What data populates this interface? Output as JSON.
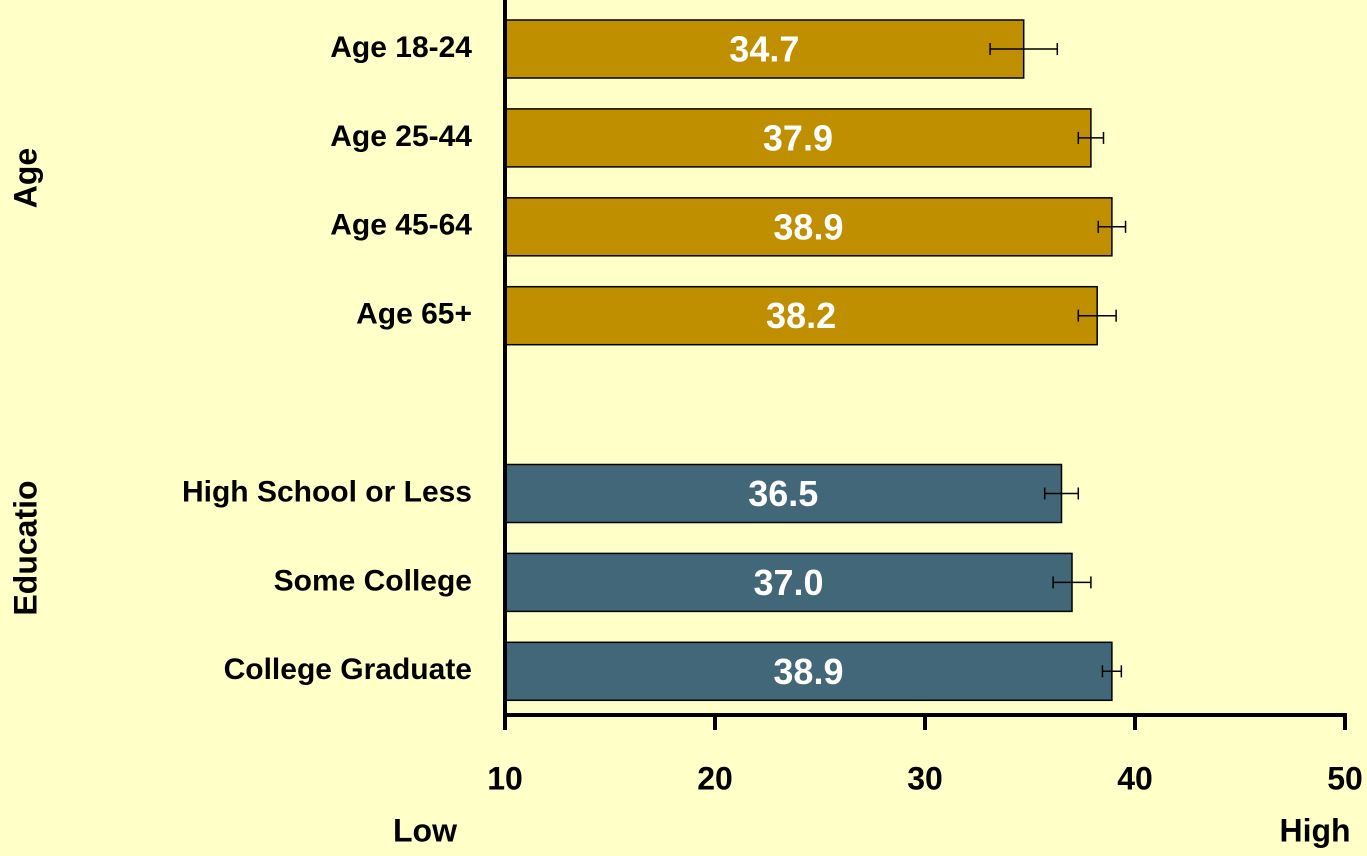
{
  "chart_data": {
    "type": "hbar",
    "categories": [
      "Age 18-24",
      "Age 25-44",
      "Age 45-64",
      "Age 65+",
      null,
      "High School or Less",
      "Some College",
      "College Graduate"
    ],
    "values": [
      34.7,
      37.9,
      38.9,
      38.2,
      null,
      36.5,
      37.0,
      38.9
    ],
    "value_labels": [
      "34.7",
      "37.9",
      "38.9",
      "38.2",
      null,
      "36.5",
      "37.0",
      "38.9"
    ],
    "errors": [
      1.6,
      0.6,
      0.65,
      0.9,
      null,
      0.8,
      0.9,
      0.45
    ],
    "colors": [
      "#bf8f00",
      "#bf8f00",
      "#bf8f00",
      "#bf8f00",
      null,
      "#426779",
      "#426779",
      "#426779"
    ],
    "groups": [
      "Age",
      "Educatio"
    ],
    "xlim": [
      10,
      50
    ],
    "xticks": [
      10,
      20,
      30,
      40,
      50
    ],
    "x_axis_low": "Low",
    "x_axis_high": "High"
  }
}
